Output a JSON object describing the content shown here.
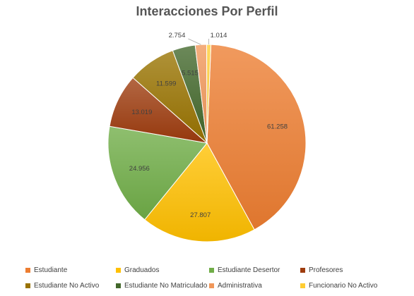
{
  "chart_data": {
    "type": "pie",
    "title": "Interacciones Por Perfil",
    "slices": [
      {
        "name": "Estudiante",
        "value": 61258,
        "label": "61.258",
        "color": "#ED7D31"
      },
      {
        "name": "Graduados",
        "value": 27807,
        "label": "27.807",
        "color": "#FFC000"
      },
      {
        "name": "Estudiante Desertor",
        "value": 24956,
        "label": "24.956",
        "color": "#70AD47"
      },
      {
        "name": "Profesores",
        "value": 13019,
        "label": "13.019",
        "color": "#9E3C0E"
      },
      {
        "name": "Estudiante No Activo",
        "value": 11599,
        "label": "11.599",
        "color": "#997300"
      },
      {
        "name": "Estudiante No Matriculado",
        "value": 5515,
        "label": "5.515",
        "color": "#43682B"
      },
      {
        "name": "Administrativa",
        "value": 2754,
        "label": "2.754",
        "color": "#F1975A"
      },
      {
        "name": "Funcionario No Activo",
        "value": 1014,
        "label": "1.014",
        "color": "#FFCD33"
      }
    ],
    "legend_position": "bottom"
  }
}
